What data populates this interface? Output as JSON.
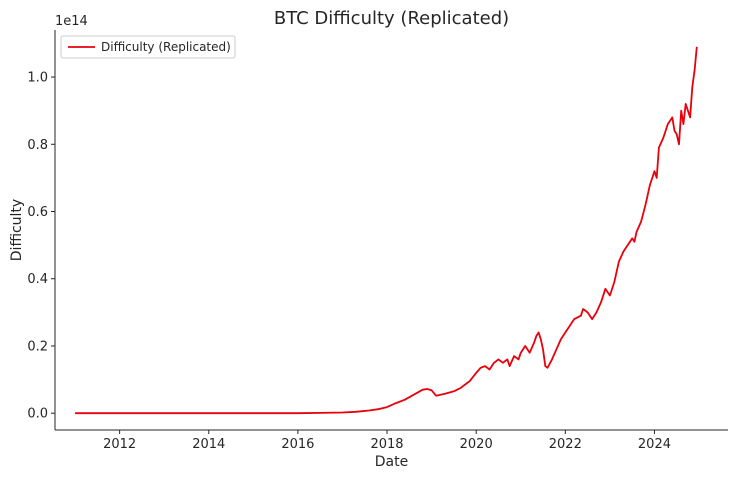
{
  "chart_data": {
    "type": "line",
    "title": "BTC Difficulty (Replicated)",
    "xlabel": "Date",
    "ylabel": "Difficulty",
    "y_offset_label": "1e14",
    "y_multiplier": 100000000000000.0,
    "xlim": [
      2010.55,
      2025.65
    ],
    "ylim": [
      -0.05,
      1.14
    ],
    "x_ticks": [
      2012,
      2014,
      2016,
      2018,
      2020,
      2022,
      2024
    ],
    "x_tick_labels": [
      "2012",
      "2014",
      "2016",
      "2018",
      "2020",
      "2022",
      "2024"
    ],
    "y_ticks": [
      0.0,
      0.2,
      0.4,
      0.6,
      0.8,
      1.0
    ],
    "y_tick_labels": [
      "0.0",
      "0.2",
      "0.4",
      "0.6",
      "0.8",
      "1.0"
    ],
    "grid": false,
    "legend_position": "top-left",
    "series": [
      {
        "name": "Difficulty (Replicated)",
        "color": "#e8000b",
        "x": [
          2011.0,
          2012.0,
          2013.0,
          2014.0,
          2015.0,
          2016.0,
          2016.5,
          2017.0,
          2017.3,
          2017.6,
          2017.8,
          2018.0,
          2018.2,
          2018.4,
          2018.6,
          2018.8,
          2018.9,
          2019.0,
          2019.1,
          2019.3,
          2019.5,
          2019.65,
          2019.75,
          2019.85,
          2020.0,
          2020.1,
          2020.2,
          2020.3,
          2020.4,
          2020.5,
          2020.6,
          2020.7,
          2020.75,
          2020.85,
          2020.95,
          2021.0,
          2021.1,
          2021.2,
          2021.3,
          2021.35,
          2021.4,
          2021.45,
          2021.5,
          2021.55,
          2021.6,
          2021.7,
          2021.8,
          2021.9,
          2022.0,
          2022.1,
          2022.2,
          2022.35,
          2022.4,
          2022.5,
          2022.6,
          2022.7,
          2022.8,
          2022.9,
          2022.95,
          2023.0,
          2023.1,
          2023.2,
          2023.3,
          2023.4,
          2023.5,
          2023.55,
          2023.6,
          2023.7,
          2023.8,
          2023.9,
          2024.0,
          2024.05,
          2024.1,
          2024.2,
          2024.3,
          2024.4,
          2024.45,
          2024.5,
          2024.55,
          2024.6,
          2024.65,
          2024.7,
          2024.8,
          2024.85,
          2024.9,
          2024.95
        ],
        "y": [
          0.0,
          0.0,
          0.0,
          0.0,
          0.0,
          0.0,
          0.001,
          0.002,
          0.004,
          0.008,
          0.012,
          0.018,
          0.03,
          0.04,
          0.055,
          0.07,
          0.072,
          0.068,
          0.052,
          0.058,
          0.065,
          0.075,
          0.085,
          0.095,
          0.12,
          0.135,
          0.14,
          0.13,
          0.15,
          0.16,
          0.15,
          0.16,
          0.14,
          0.17,
          0.16,
          0.18,
          0.2,
          0.18,
          0.21,
          0.23,
          0.24,
          0.22,
          0.19,
          0.14,
          0.135,
          0.16,
          0.19,
          0.22,
          0.24,
          0.26,
          0.28,
          0.29,
          0.31,
          0.3,
          0.28,
          0.3,
          0.33,
          0.37,
          0.36,
          0.35,
          0.39,
          0.45,
          0.48,
          0.5,
          0.52,
          0.51,
          0.54,
          0.57,
          0.62,
          0.68,
          0.72,
          0.7,
          0.79,
          0.82,
          0.86,
          0.88,
          0.84,
          0.83,
          0.8,
          0.9,
          0.86,
          0.92,
          0.88,
          0.97,
          1.02,
          1.09
        ]
      }
    ]
  }
}
